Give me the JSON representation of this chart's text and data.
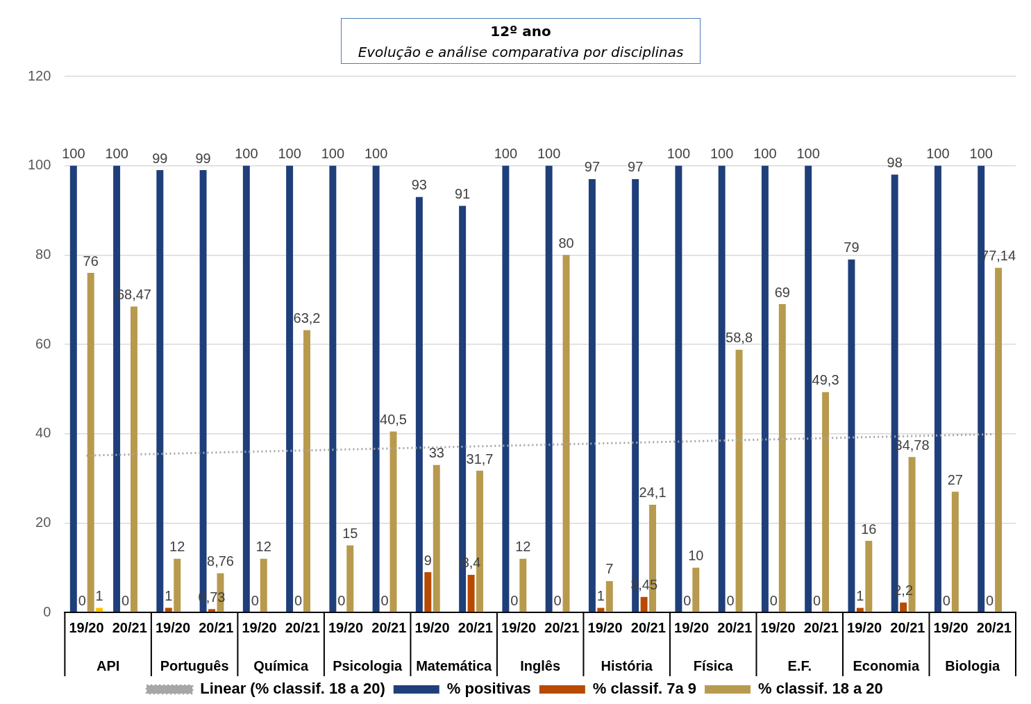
{
  "chart_data": {
    "type": "bar",
    "title": "12º ano",
    "subtitle": "Evolução e análise comparativa por disciplinas",
    "categories": [
      "19/20",
      "20/21",
      "19/20",
      "20/21",
      "19/20",
      "20/21",
      "19/20",
      "20/21",
      "19/20",
      "20/21",
      "19/20",
      "20/21",
      "19/20",
      "20/21",
      "19/20",
      "20/21",
      "19/20",
      "20/21",
      "19/20",
      "20/21",
      "19/20",
      "20/21"
    ],
    "annotations": [
      "API",
      "Português",
      "Química",
      "Psicologia",
      "Matemática",
      "Inglês",
      "História",
      "Física",
      "E.F.",
      "Economia",
      "Biologia"
    ],
    "series": [
      {
        "name": "% positivas",
        "color": "#1f3f7a",
        "values": [
          100,
          100,
          99,
          99,
          100,
          100,
          100,
          100,
          93,
          91,
          100,
          100,
          97,
          97,
          100,
          100,
          100,
          100,
          79,
          98,
          100,
          100
        ],
        "value_labels": [
          "100",
          "100",
          "99",
          "99",
          "100",
          "100",
          "100",
          "100",
          "93",
          "91",
          "100",
          "100",
          "97",
          "97",
          "100",
          "100",
          "100",
          "100",
          "79",
          "98",
          "100",
          "100"
        ]
      },
      {
        "name": "% classif. 7a 9",
        "color": "#b84a00",
        "values": [
          0,
          0,
          1,
          0.73,
          0,
          0,
          0,
          0,
          9,
          8.4,
          0,
          0,
          1,
          3.45,
          0,
          0,
          0,
          0,
          1,
          2.2,
          0,
          0
        ],
        "value_labels": [
          "0",
          "0",
          "1",
          "0,73",
          "0",
          "0",
          "0",
          "0",
          "9",
          "8,4",
          "0",
          "0",
          "1",
          "3,45",
          "0",
          "0",
          "0",
          "0",
          "1",
          "2,2",
          "0",
          "0"
        ]
      },
      {
        "name": "% classif. 18 a 20",
        "color": "#b89a4e",
        "values": [
          76,
          68.47,
          12,
          8.76,
          12,
          63.2,
          15,
          40.5,
          33,
          31.7,
          12,
          80,
          7,
          24.1,
          10,
          58.8,
          69,
          49.3,
          16,
          34.78,
          27,
          77.14
        ],
        "value_labels": [
          "76",
          "68,47",
          "12",
          "8,76",
          "12",
          "63,2",
          "15",
          "40,5",
          "33",
          "31,7",
          "12",
          "80",
          "7",
          "24,1",
          "10",
          "58,8",
          "69",
          "49,3",
          "16",
          "34,78",
          "27",
          "77,14"
        ]
      },
      {
        "color": "#ffc000",
        "values": [
          1,
          null,
          null,
          null,
          null,
          null,
          null,
          null,
          null,
          null,
          null,
          null,
          null,
          null,
          null,
          null,
          null,
          null,
          null,
          null,
          null,
          null
        ],
        "value_labels": [
          "1",
          null,
          null,
          null,
          null,
          null,
          null,
          null,
          null,
          null,
          null,
          null,
          null,
          null,
          null,
          null,
          null,
          null,
          null,
          null,
          null,
          null
        ]
      },
      {
        "name": "Linear (% classif. 18 a 20)",
        "type": "line",
        "line_style": "dotted",
        "color": "#a6a6a6",
        "values": [
          35.1,
          null,
          null,
          null,
          null,
          null,
          null,
          null,
          null,
          null,
          null,
          null,
          null,
          null,
          null,
          null,
          null,
          null,
          null,
          null,
          null,
          39.9
        ]
      }
    ],
    "ylim": [
      0,
      120
    ],
    "yticks": [
      0,
      20,
      40,
      60,
      80,
      100,
      120
    ],
    "grid": "y",
    "legend": "bottom"
  }
}
